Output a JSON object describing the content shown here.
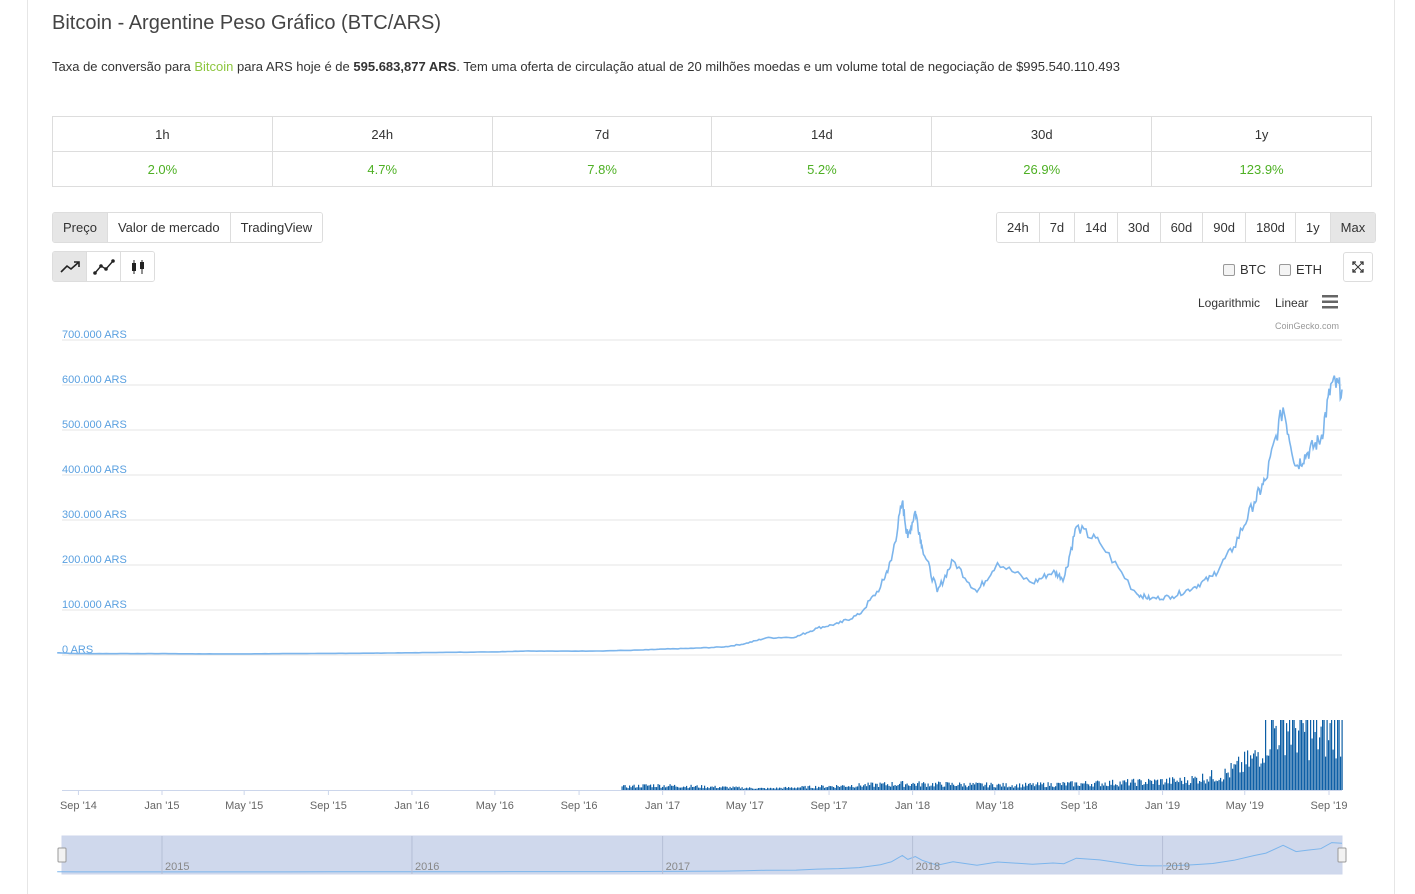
{
  "header": {
    "title": "Bitcoin - Argentine Peso Gráfico (BTC/ARS)",
    "desc_prefix": "Taxa de conversão para ",
    "desc_link": "Bitcoin",
    "desc_mid": " para ARS hoje é de ",
    "desc_price": "595.683,877 ARS",
    "desc_suffix": ". Tem uma oferta de circulação atual de 20 milhões moedas e um volume total de negociação de $995.540.110.493"
  },
  "changes": {
    "periods": [
      "1h",
      "24h",
      "7d",
      "14d",
      "30d",
      "1y"
    ],
    "values": [
      "2.0%",
      "4.7%",
      "7.8%",
      "5.2%",
      "26.9%",
      "123.9%"
    ],
    "positive_color": "#4eb024"
  },
  "tabs": {
    "items": [
      "Preço",
      "Valor de mercado",
      "TradingView"
    ],
    "active": "Preço"
  },
  "ranges": {
    "items": [
      "24h",
      "7d",
      "14d",
      "30d",
      "60d",
      "90d",
      "180d",
      "1y",
      "Max"
    ],
    "active": "Max"
  },
  "chart_types": {
    "items": [
      "line-chart-icon",
      "line-points-icon",
      "candlestick-icon"
    ],
    "active": "line-chart-icon"
  },
  "compare": {
    "btc": "BTC",
    "eth": "ETH"
  },
  "scale": {
    "logarithmic": "Logarithmic",
    "linear": "Linear"
  },
  "credit": "CoinGecko.com",
  "colors": {
    "line": "#7cb5ec",
    "volume": "#0d5fa6",
    "navigator": "#ccd6eb",
    "axis_label": "#5aa0e0"
  },
  "chart_data": {
    "type": "line",
    "title": "",
    "ylabel": "",
    "y_unit": "ARS",
    "ylim": [
      0,
      700000
    ],
    "y_ticks": [
      "0 ARS",
      "100.000 ARS",
      "200.000 ARS",
      "300.000 ARS",
      "400.000 ARS",
      "500.000 ARS",
      "600.000 ARS",
      "700.000 ARS"
    ],
    "x_ticks": [
      "Sep '14",
      "Jan '15",
      "May '15",
      "Sep '15",
      "Jan '16",
      "May '16",
      "Sep '16",
      "Jan '17",
      "May '17",
      "Sep '17",
      "Jan '18",
      "May '18",
      "Sep '18",
      "Jan '19",
      "May '19",
      "Sep '19"
    ],
    "navigator_labels": [
      "2015",
      "2016",
      "2017",
      "2018",
      "2019"
    ],
    "series": [
      {
        "type": "line",
        "x": [
          "2014-08-01",
          "2014-09-01",
          "2014-11-01",
          "2015-01-01",
          "2015-03-01",
          "2015-05-01",
          "2015-07-01",
          "2015-09-01",
          "2015-11-01",
          "2016-01-01",
          "2016-03-01",
          "2016-05-01",
          "2016-06-15",
          "2016-08-01",
          "2016-10-01",
          "2016-12-01",
          "2017-01-01",
          "2017-02-15",
          "2017-04-01",
          "2017-05-01",
          "2017-06-01",
          "2017-07-15",
          "2017-08-15",
          "2017-09-15",
          "2017-10-15",
          "2017-11-15",
          "2017-12-01",
          "2017-12-17",
          "2017-12-25",
          "2018-01-05",
          "2018-01-15",
          "2018-02-06",
          "2018-03-01",
          "2018-04-05",
          "2018-05-05",
          "2018-06-25",
          "2018-07-25",
          "2018-08-10",
          "2018-08-28",
          "2018-10-01",
          "2018-11-25",
          "2018-12-15",
          "2019-01-15",
          "2019-02-15",
          "2019-03-15",
          "2019-04-15",
          "2019-05-15",
          "2019-06-01",
          "2019-06-26",
          "2019-07-15",
          "2019-08-01",
          "2019-08-20",
          "2019-09-05",
          "2019-09-20"
        ],
        "values": [
          5000,
          3000,
          3000,
          3000,
          2500,
          2500,
          3000,
          3500,
          4000,
          5000,
          6000,
          7000,
          9000,
          8500,
          9000,
          11000,
          13000,
          15000,
          18000,
          25000,
          38000,
          40000,
          60000,
          70000,
          90000,
          150000,
          210000,
          340000,
          260000,
          320000,
          240000,
          140000,
          210000,
          140000,
          205000,
          160000,
          185000,
          170000,
          285000,
          250000,
          135000,
          125000,
          130000,
          150000,
          175000,
          240000,
          340000,
          390000,
          550000,
          420000,
          450000,
          480000,
          605000,
          590000
        ]
      },
      {
        "type": "bar",
        "name": "volume",
        "x": [
          "2016-11-01",
          "2016-12-15",
          "2017-06-01",
          "2017-12-20",
          "2018-06-01",
          "2018-09-01",
          "2018-12-01",
          "2019-02-01",
          "2019-04-01",
          "2019-05-15",
          "2019-06-01",
          "2019-06-26",
          "2019-07-15",
          "2019-08-15",
          "2019-09-15"
        ],
        "values": [
          2,
          3,
          1,
          4,
          3,
          4,
          5,
          6,
          10,
          20,
          35,
          45,
          40,
          35,
          40
        ]
      }
    ],
    "grid": true,
    "legend": "none"
  }
}
